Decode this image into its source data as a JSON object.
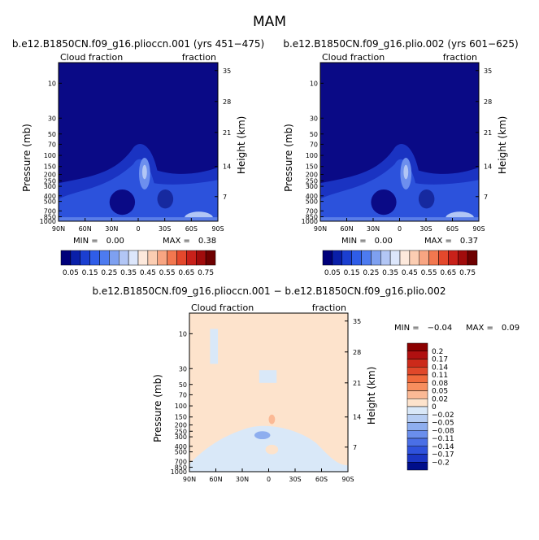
{
  "page_title": "MAM",
  "chart_data": [
    {
      "type": "heatmap",
      "title": "b.e12.B1850CN.f09_g16.plioccn.001 (yrs 451−475)",
      "left_label": "Cloud fraction",
      "right_label": "fraction",
      "ylabel": "Pressure (mb)",
      "ylabel_right": "Height (km)",
      "x_ticks": [
        "90N",
        "60N",
        "30N",
        "0",
        "30S",
        "60S",
        "90S"
      ],
      "pressure_ticks": [
        "10",
        "30",
        "50",
        "70",
        "100",
        "150",
        "200",
        "250",
        "300",
        "400",
        "500",
        "700",
        "850",
        "1000"
      ],
      "height_ticks": [
        "35",
        "28",
        "21",
        "14",
        "7"
      ],
      "min_label": "MIN =",
      "min_value": "0.00",
      "max_label": "MAX =",
      "max_value": "0.38",
      "colorbar_levels": [
        "0.05",
        "0.15",
        "0.25",
        "0.35",
        "0.45",
        "0.55",
        "0.65",
        "0.75"
      ],
      "colorbar_colors": [
        "#00007a",
        "#0a1fa8",
        "#1b3fd0",
        "#2f5de8",
        "#4d7bf0",
        "#7ea0f0",
        "#b2c6f5",
        "#dce6fb",
        "#fde9dc",
        "#fbcdb2",
        "#f8a582",
        "#f2774f",
        "#e4482c",
        "#c8211a",
        "#a10c0c",
        "#6e0000"
      ]
    },
    {
      "type": "heatmap",
      "title": "b.e12.B1850CN.f09_g16.plio.002 (yrs 601−625)",
      "left_label": "Cloud fraction",
      "right_label": "fraction",
      "ylabel": "Pressure (mb)",
      "ylabel_right": "Height (km)",
      "x_ticks": [
        "90N",
        "60N",
        "30N",
        "0",
        "30S",
        "60S",
        "90S"
      ],
      "pressure_ticks": [
        "10",
        "30",
        "50",
        "70",
        "100",
        "150",
        "200",
        "250",
        "300",
        "400",
        "500",
        "700",
        "850",
        "1000"
      ],
      "height_ticks": [
        "35",
        "28",
        "21",
        "14",
        "7"
      ],
      "min_label": "MIN =",
      "min_value": "0.00",
      "max_label": "MAX =",
      "max_value": "0.37",
      "colorbar_levels": [
        "0.05",
        "0.15",
        "0.25",
        "0.35",
        "0.45",
        "0.55",
        "0.65",
        "0.75"
      ]
    },
    {
      "type": "heatmap",
      "title": "b.e12.B1850CN.f09_g16.plioccn.001 − b.e12.B1850CN.f09_g16.plio.002",
      "left_label": "Cloud fraction",
      "right_label": "fraction",
      "ylabel": "Pressure (mb)",
      "ylabel_right": "Height (km)",
      "x_ticks": [
        "90N",
        "60N",
        "30N",
        "0",
        "30S",
        "60S",
        "90S"
      ],
      "pressure_ticks": [
        "10",
        "30",
        "50",
        "70",
        "100",
        "150",
        "200",
        "250",
        "300",
        "400",
        "500",
        "700",
        "850",
        "1000"
      ],
      "height_ticks": [
        "35",
        "28",
        "21",
        "14",
        "7"
      ],
      "min_label": "MIN =",
      "min_value": "−0.04",
      "max_label": "MAX =",
      "max_value": "0.09",
      "colorbar_levels": [
        "0.2",
        "0.17",
        "0.14",
        "0.11",
        "0.08",
        "0.05",
        "0.02",
        "0",
        "−0.02",
        "−0.05",
        "−0.08",
        "−0.11",
        "−0.14",
        "−0.17",
        "−0.2"
      ],
      "colorbar_colors": [
        "#8b0000",
        "#b01010",
        "#cc2a1a",
        "#e0482a",
        "#f06a3c",
        "#f78e5e",
        "#fbb995",
        "#fde3cc",
        "#d9e8f8",
        "#b6cdf3",
        "#8eaeef",
        "#6a8eec",
        "#4a6fe6",
        "#2f52dc",
        "#1b36c4",
        "#000e8a"
      ]
    }
  ]
}
